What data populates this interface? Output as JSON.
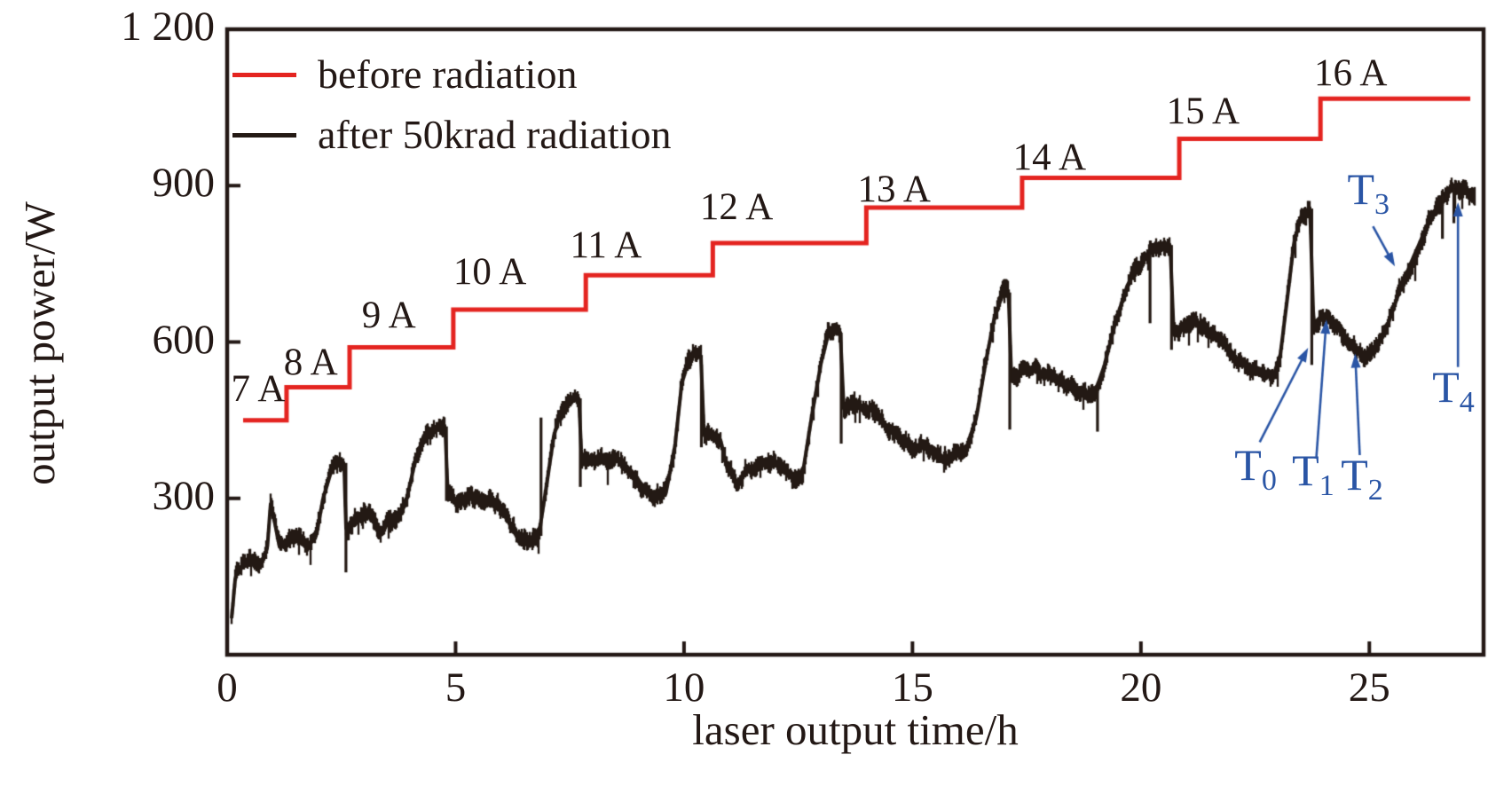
{
  "figure": {
    "background": "#ffffff",
    "text_color": "#231815"
  },
  "chart_data": {
    "type": "line",
    "title": "",
    "xlabel": "laser output time/h",
    "ylabel": "output power/W",
    "xlim": [
      0,
      27.5
    ],
    "ylim": [
      0,
      1200
    ],
    "grid": false,
    "legend_position": "top-left-inside",
    "x_ticks": [
      0,
      5,
      10,
      15,
      20,
      25
    ],
    "x_tick_labels": [
      "0",
      "5",
      "10",
      "15",
      "20",
      "25"
    ],
    "y_ticks": [
      300,
      600,
      900,
      1200
    ],
    "y_tick_labels": [
      "300",
      "600",
      "900",
      "1 200"
    ],
    "series": [
      {
        "name": "before radiation",
        "color": "#e42420",
        "style": "step",
        "steps": [
          {
            "label": "7 A",
            "current_A": 7,
            "power_W": 450,
            "t_start": 0.35,
            "t_end": 1.3,
            "label_pos": [
              0.68,
              505
            ]
          },
          {
            "label": "8 A",
            "current_A": 8,
            "power_W": 513,
            "t_start": 1.3,
            "t_end": 2.68,
            "label_pos": [
              1.83,
              557
            ]
          },
          {
            "label": "9 A",
            "current_A": 9,
            "power_W": 590,
            "t_start": 2.68,
            "t_end": 4.95,
            "label_pos": [
              3.54,
              646
            ]
          },
          {
            "label": "10 A",
            "current_A": 10,
            "power_W": 662,
            "t_start": 4.95,
            "t_end": 7.85,
            "label_pos": [
              5.75,
              731
            ]
          },
          {
            "label": "11 A",
            "current_A": 11,
            "power_W": 728,
            "t_start": 7.85,
            "t_end": 10.63,
            "label_pos": [
              8.29,
              782
            ]
          },
          {
            "label": "12 A",
            "current_A": 12,
            "power_W": 790,
            "t_start": 10.63,
            "t_end": 13.99,
            "label_pos": [
              11.15,
              855
            ]
          },
          {
            "label": "13 A",
            "current_A": 13,
            "power_W": 858,
            "t_start": 13.99,
            "t_end": 17.4,
            "label_pos": [
              14.6,
              888
            ]
          },
          {
            "label": "14 A",
            "current_A": 14,
            "power_W": 915,
            "t_start": 17.4,
            "t_end": 20.84,
            "label_pos": [
              18.0,
              950
            ]
          },
          {
            "label": "15 A",
            "current_A": 15,
            "power_W": 990,
            "t_start": 20.84,
            "t_end": 23.93,
            "label_pos": [
              21.36,
              1038
            ]
          },
          {
            "label": "16 A",
            "current_A": 16,
            "power_W": 1067,
            "t_start": 23.93,
            "t_end": 27.21,
            "label_pos": [
              24.59,
              1112
            ]
          }
        ]
      },
      {
        "name": "after 50krad radiation",
        "color": "#241a14",
        "style": "noisy-line",
        "noise_band_W": 13,
        "anchors": [
          [
            0.1,
            70
          ],
          [
            0.18,
            150
          ],
          [
            0.35,
            170
          ],
          [
            0.55,
            180
          ],
          [
            0.75,
            175
          ],
          [
            0.88,
            205
          ],
          [
            0.95,
            290
          ],
          [
            1.05,
            250
          ],
          [
            1.15,
            205
          ],
          [
            1.35,
            215
          ],
          [
            1.55,
            218
          ],
          [
            1.75,
            205
          ],
          [
            1.95,
            228
          ],
          [
            2.1,
            300
          ],
          [
            2.3,
            358
          ],
          [
            2.45,
            372
          ],
          [
            2.56,
            368
          ],
          [
            2.6,
            242
          ],
          [
            2.75,
            258
          ],
          [
            2.95,
            272
          ],
          [
            3.1,
            280
          ],
          [
            3.25,
            252
          ],
          [
            3.35,
            228
          ],
          [
            3.5,
            250
          ],
          [
            3.7,
            258
          ],
          [
            3.9,
            288
          ],
          [
            4.1,
            365
          ],
          [
            4.3,
            420
          ],
          [
            4.55,
            435
          ],
          [
            4.77,
            440
          ],
          [
            4.83,
            308
          ],
          [
            5.0,
            290
          ],
          [
            5.2,
            298
          ],
          [
            5.45,
            308
          ],
          [
            5.7,
            302
          ],
          [
            5.95,
            285
          ],
          [
            6.2,
            248
          ],
          [
            6.45,
            222
          ],
          [
            6.65,
            218
          ],
          [
            6.85,
            245
          ],
          [
            7.0,
            330
          ],
          [
            7.15,
            420
          ],
          [
            7.35,
            478
          ],
          [
            7.6,
            498
          ],
          [
            7.7,
            492
          ],
          [
            7.76,
            372
          ],
          [
            8.0,
            378
          ],
          [
            8.3,
            385
          ],
          [
            8.6,
            375
          ],
          [
            8.9,
            348
          ],
          [
            9.15,
            318
          ],
          [
            9.4,
            298
          ],
          [
            9.6,
            308
          ],
          [
            9.8,
            400
          ],
          [
            9.95,
            520
          ],
          [
            10.1,
            565
          ],
          [
            10.3,
            578
          ],
          [
            10.37,
            570
          ],
          [
            10.44,
            420
          ],
          [
            10.6,
            425
          ],
          [
            10.8,
            412
          ],
          [
            10.95,
            355
          ],
          [
            11.15,
            330
          ],
          [
            11.35,
            348
          ],
          [
            11.6,
            365
          ],
          [
            11.85,
            372
          ],
          [
            12.1,
            368
          ],
          [
            12.3,
            348
          ],
          [
            12.45,
            332
          ],
          [
            12.6,
            350
          ],
          [
            12.8,
            460
          ],
          [
            13.0,
            560
          ],
          [
            13.15,
            612
          ],
          [
            13.32,
            628
          ],
          [
            13.42,
            618
          ],
          [
            13.5,
            468
          ],
          [
            13.7,
            480
          ],
          [
            13.95,
            478
          ],
          [
            14.2,
            465
          ],
          [
            14.45,
            438
          ],
          [
            14.75,
            415
          ],
          [
            15.05,
            402
          ],
          [
            15.35,
            392
          ],
          [
            15.65,
            380
          ],
          [
            15.95,
            386
          ],
          [
            16.2,
            402
          ],
          [
            16.4,
            455
          ],
          [
            16.6,
            560
          ],
          [
            16.8,
            650
          ],
          [
            16.98,
            692
          ],
          [
            17.1,
            698
          ],
          [
            17.17,
            522
          ],
          [
            17.35,
            545
          ],
          [
            17.6,
            550
          ],
          [
            17.85,
            540
          ],
          [
            18.1,
            526
          ],
          [
            18.4,
            510
          ],
          [
            18.7,
            500
          ],
          [
            19.0,
            505
          ],
          [
            19.2,
            555
          ],
          [
            19.45,
            640
          ],
          [
            19.7,
            708
          ],
          [
            19.95,
            748
          ],
          [
            20.2,
            772
          ],
          [
            20.45,
            785
          ],
          [
            20.64,
            788
          ],
          [
            20.72,
            615
          ],
          [
            20.95,
            638
          ],
          [
            21.2,
            640
          ],
          [
            21.45,
            622
          ],
          [
            21.7,
            602
          ],
          [
            21.95,
            580
          ],
          [
            22.2,
            562
          ],
          [
            22.45,
            545
          ],
          [
            22.7,
            532
          ],
          [
            22.9,
            535
          ],
          [
            23.05,
            575
          ],
          [
            23.2,
            680
          ],
          [
            23.35,
            790
          ],
          [
            23.52,
            845
          ],
          [
            23.7,
            858
          ],
          [
            23.78,
            635
          ],
          [
            23.95,
            650
          ],
          [
            24.15,
            642
          ],
          [
            24.4,
            615
          ],
          [
            24.65,
            585
          ],
          [
            24.9,
            572
          ],
          [
            25.15,
            585
          ],
          [
            25.4,
            632
          ],
          [
            25.65,
            695
          ],
          [
            25.9,
            750
          ],
          [
            26.15,
            800
          ],
          [
            26.4,
            845
          ],
          [
            26.65,
            880
          ],
          [
            26.9,
            898
          ],
          [
            27.1,
            888
          ],
          [
            27.3,
            872
          ]
        ],
        "dropout_spikes": [
          [
            2.6,
            368,
            158
          ],
          [
            4.8,
            438,
            295
          ],
          [
            6.87,
            455,
            228
          ],
          [
            7.73,
            492,
            322
          ],
          [
            10.38,
            575,
            398
          ],
          [
            13.44,
            618,
            405
          ],
          [
            17.13,
            695,
            432
          ],
          [
            19.05,
            516,
            428
          ],
          [
            20.2,
            772,
            636
          ],
          [
            20.67,
            786,
            585
          ],
          [
            23.74,
            856,
            556
          ],
          [
            26.6,
            882,
            798
          ],
          [
            26.85,
            895,
            828
          ]
        ]
      }
    ],
    "annotations": [
      {
        "label": "T",
        "sub": "0",
        "color": "#2a55a5",
        "text_pos": [
          22.51,
          355
        ],
        "arrow_tail": [
          22.6,
          408
        ],
        "arrow_tip": [
          23.66,
          589
        ]
      },
      {
        "label": "T",
        "sub": "1",
        "color": "#2a55a5",
        "text_pos": [
          23.77,
          345
        ],
        "arrow_tail": [
          23.84,
          378
        ],
        "arrow_tip": [
          24.06,
          643
        ]
      },
      {
        "label": "T",
        "sub": "2",
        "color": "#2a55a5",
        "text_pos": [
          24.84,
          337
        ],
        "arrow_tail": [
          24.79,
          383
        ],
        "arrow_tip": [
          24.69,
          578
        ]
      },
      {
        "label": "T",
        "sub": "3",
        "color": "#2a55a5",
        "text_pos": [
          24.98,
          885
        ],
        "arrow_tail": [
          25.08,
          822
        ],
        "arrow_tip": [
          25.56,
          745
        ]
      },
      {
        "label": "T",
        "sub": "4",
        "color": "#2a55a5",
        "text_pos": [
          26.84,
          505
        ],
        "arrow_tail": [
          26.94,
          552
        ],
        "arrow_tip": [
          26.94,
          868
        ]
      }
    ],
    "axis": {
      "color": "#231815",
      "tick_length": 15
    }
  }
}
